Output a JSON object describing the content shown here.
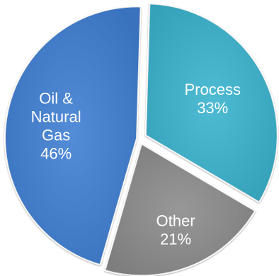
{
  "chart_data": {
    "type": "pie",
    "title": "",
    "slices": [
      {
        "label": "Process",
        "value": 33,
        "display": "33%",
        "color": "#3bb4cf"
      },
      {
        "label": "Other",
        "value": 21,
        "display": "21%",
        "color": "#8c8c8c"
      },
      {
        "label": "Oil & Natural Gas",
        "value": 46,
        "display": "46%",
        "color": "#3f7fd3"
      }
    ],
    "legend": "none"
  }
}
